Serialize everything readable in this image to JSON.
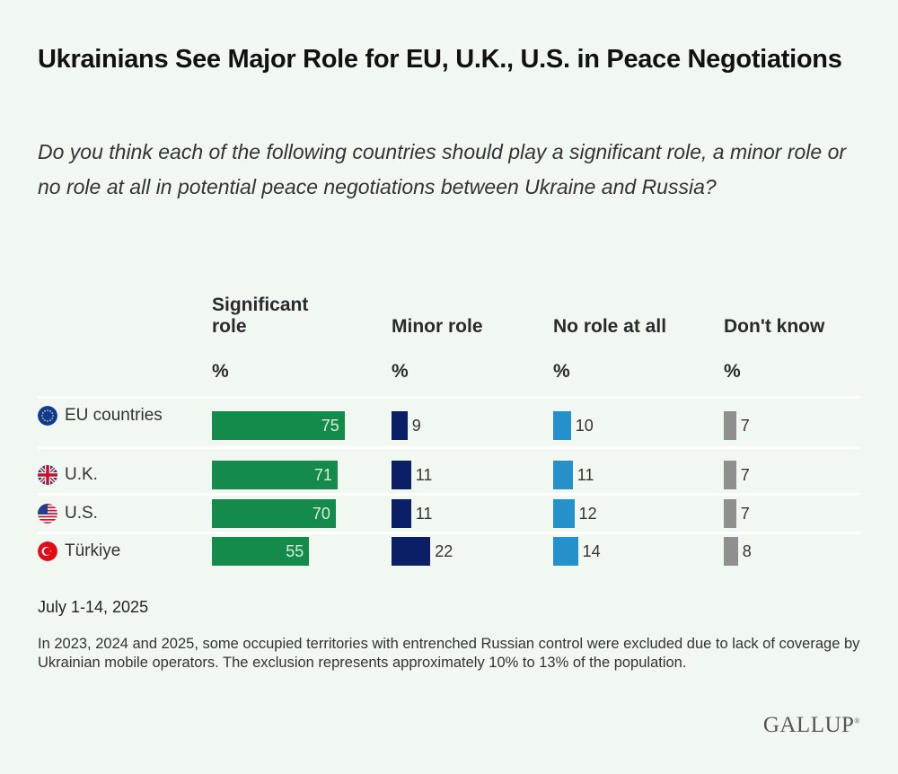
{
  "header": {
    "title": "Ukrainians See Major Role for EU, U.K., U.S. in Peace Negotiations",
    "subtitle": "Do you think each of the following countries should play a significant role, a minor role or no role at all in potential peace negotiations between Ukraine and Russia?"
  },
  "chart_data": {
    "type": "table",
    "title": "Ukrainians See Major Role for EU, U.K., U.S. in Peace Negotiations",
    "unit": "%",
    "categories": [
      "EU countries",
      "U.K.",
      "U.S.",
      "Türkiye"
    ],
    "category_icons": [
      "eu-flag-icon",
      "uk-flag-icon",
      "us-flag-icon",
      "turkiye-flag-icon"
    ],
    "series": [
      {
        "name": "Significant role",
        "unit_label": "%",
        "color": "#148a4b",
        "values": [
          75,
          71,
          70,
          55
        ]
      },
      {
        "name": "Minor role",
        "unit_label": "%",
        "color": "#0b1f66",
        "values": [
          9,
          11,
          11,
          22
        ]
      },
      {
        "name": "No role at all",
        "unit_label": "%",
        "color": "#2590c9",
        "values": [
          10,
          11,
          12,
          14
        ]
      },
      {
        "name": "Don't know",
        "unit_label": "%",
        "color": "#8f8f8f",
        "values": [
          7,
          7,
          7,
          8
        ]
      }
    ],
    "value_range": [
      0,
      100
    ]
  },
  "footer": {
    "date": "July 1-14, 2025",
    "note": "In 2023, 2024 and 2025, some occupied territories with entrenched Russian control were excluded due to lack of coverage by Ukrainian mobile operators. The exclusion represents approximately 10% to 13% of the population.",
    "logo": "GALLUP"
  }
}
